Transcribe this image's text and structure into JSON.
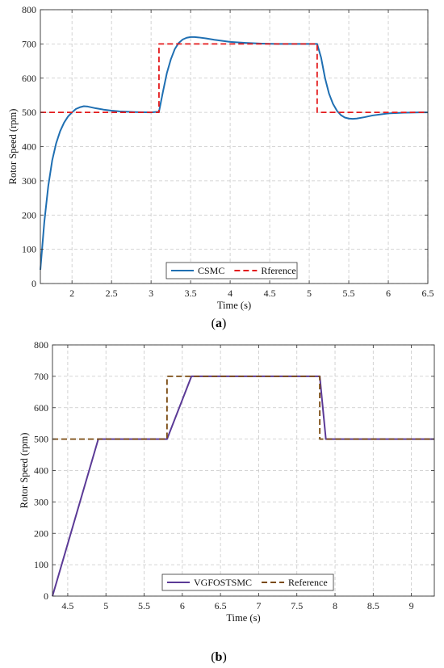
{
  "figure": {
    "caption_a": "(a)",
    "caption_a_parts": [
      "(",
      "a",
      ")"
    ],
    "caption_b_parts": [
      "(",
      "b",
      ")"
    ]
  },
  "chart_data": [
    {
      "type": "line",
      "panel": "a",
      "xlabel": "Time (s)",
      "ylabel": "Rotor Speed (rpm)",
      "xlim": [
        1.6,
        6.5
      ],
      "ylim": [
        0,
        800
      ],
      "xticks": [
        2,
        2.5,
        3,
        3.5,
        4,
        4.5,
        5,
        5.5,
        6,
        6.5
      ],
      "xtick_labels": [
        "2",
        "2.5",
        "3",
        "3.5",
        "4",
        "4.5",
        "5",
        "5.5",
        "6",
        "6.5"
      ],
      "yticks": [
        0,
        100,
        200,
        300,
        400,
        500,
        600,
        700,
        800
      ],
      "ytick_labels": [
        "0",
        "100",
        "200",
        "300",
        "400",
        "500",
        "600",
        "700",
        "800"
      ],
      "grid": true,
      "legend_position": "bottom-right",
      "series": [
        {
          "name": "CSMC",
          "color": "#1f6fb2",
          "style": "solid",
          "x": [
            1.6,
            1.65,
            1.7,
            1.75,
            1.8,
            1.85,
            1.9,
            1.95,
            2.0,
            2.05,
            2.1,
            2.15,
            2.2,
            2.3,
            2.4,
            2.5,
            2.6,
            2.8,
            3.0,
            3.1,
            3.15,
            3.2,
            3.25,
            3.3,
            3.35,
            3.4,
            3.45,
            3.5,
            3.55,
            3.6,
            3.7,
            3.8,
            4.0,
            4.2,
            4.4,
            4.6,
            4.8,
            5.0,
            5.1,
            5.15,
            5.2,
            5.25,
            5.3,
            5.35,
            5.4,
            5.45,
            5.5,
            5.55,
            5.6,
            5.7,
            5.8,
            6.0,
            6.2,
            6.4,
            6.5
          ],
          "y": [
            40,
            180,
            285,
            360,
            410,
            445,
            470,
            488,
            500,
            510,
            515,
            518,
            517,
            512,
            508,
            505,
            503,
            501,
            500,
            502,
            560,
            615,
            655,
            685,
            703,
            713,
            718,
            720,
            720,
            719,
            716,
            712,
            706,
            703,
            701,
            700,
            700,
            700,
            700,
            660,
            600,
            555,
            525,
            505,
            492,
            485,
            482,
            481,
            482,
            486,
            491,
            497,
            499,
            500,
            500
          ]
        },
        {
          "name": "Rference",
          "color": "#e31a1c",
          "style": "dashed",
          "x": [
            1.6,
            3.1,
            3.1,
            5.1,
            5.1,
            6.5
          ],
          "y": [
            500,
            500,
            700,
            700,
            500,
            500
          ]
        }
      ]
    },
    {
      "type": "line",
      "panel": "b",
      "xlabel": "Time (s)",
      "ylabel": "Rotor Speed (rpm)",
      "xlim": [
        4.3,
        9.3
      ],
      "ylim": [
        0,
        800
      ],
      "xticks": [
        4.5,
        5,
        5.5,
        6,
        6.5,
        7,
        7.5,
        8,
        8.5,
        9
      ],
      "xtick_labels": [
        "4.5",
        "5",
        "5.5",
        "6",
        "6.5",
        "7",
        "7.5",
        "8",
        "8.5",
        "9"
      ],
      "yticks": [
        0,
        100,
        200,
        300,
        400,
        500,
        600,
        700,
        800
      ],
      "ytick_labels": [
        "0",
        "100",
        "200",
        "300",
        "400",
        "500",
        "600",
        "700",
        "800"
      ],
      "grid": true,
      "legend_position": "bottom-right",
      "series": [
        {
          "name": "VGFOSTSMC",
          "color": "#5b3a96",
          "style": "solid",
          "x": [
            4.3,
            4.9,
            5.8,
            6.12,
            7.8,
            7.88,
            9.3
          ],
          "y": [
            0,
            500,
            500,
            700,
            700,
            500,
            500
          ]
        },
        {
          "name": "Reference",
          "color": "#7a4a10",
          "style": "dashed",
          "x": [
            4.3,
            5.8,
            5.8,
            7.8,
            7.8,
            9.3
          ],
          "y": [
            500,
            500,
            700,
            700,
            500,
            500
          ]
        }
      ]
    }
  ]
}
